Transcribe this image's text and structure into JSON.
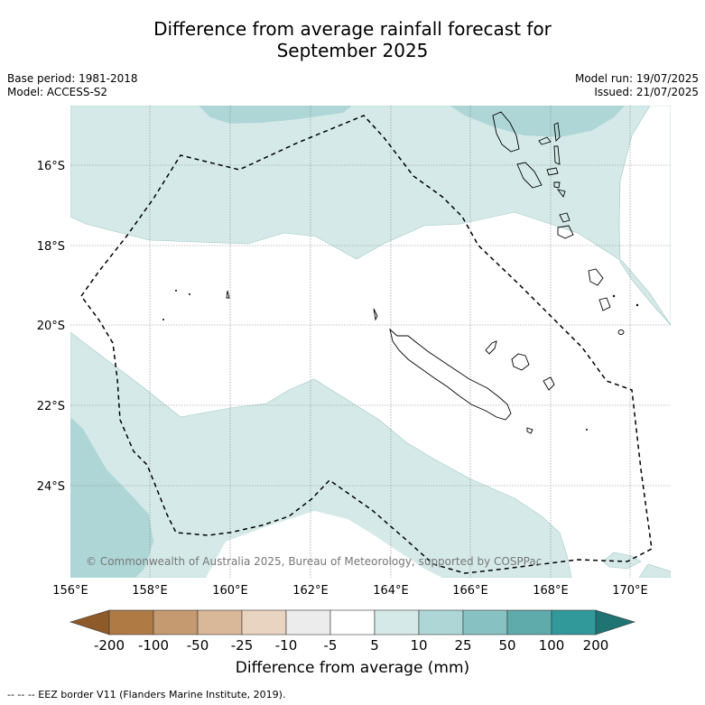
{
  "title_line1": "Difference from average rainfall forecast for",
  "title_line2": "September 2025",
  "base_period": "Base period: 1981-2018",
  "model": "Model: ACCESS-S2",
  "model_run": "Model run: 19/07/2025",
  "issued": "Issued: 21/07/2025",
  "copyright": "© Commonwealth of Australia 2025, Bureau of Meteorology, supported by COSPPac",
  "lat_labels": [
    "16°S",
    "18°S",
    "20°S",
    "22°S",
    "24°S"
  ],
  "lon_labels": [
    "156°E",
    "158°E",
    "160°E",
    "162°E",
    "164°E",
    "166°E",
    "168°E",
    "170°E"
  ],
  "colorbar": {
    "labels": [
      "-200",
      "-100",
      "-50",
      "-25",
      "-10",
      "-5",
      "5",
      "10",
      "25",
      "50",
      "100",
      "200"
    ],
    "colors": [
      "#8f5a2a",
      "#b07a45",
      "#c59a70",
      "#d8b898",
      "#e8d4c0",
      "#ececec",
      "#ffffff",
      "#d5eae8",
      "#aed6d6",
      "#88c1c1",
      "#5fabab",
      "#32999a",
      "#1f7373"
    ],
    "title": "Difference from average (mm)"
  },
  "footnote": "--  --  -- EEZ border V11 (Flanders Marine Institute, 2019).",
  "colors": {
    "light_teal": "#d5eae8",
    "mid_teal": "#aed6d6",
    "grid": "#888888"
  }
}
